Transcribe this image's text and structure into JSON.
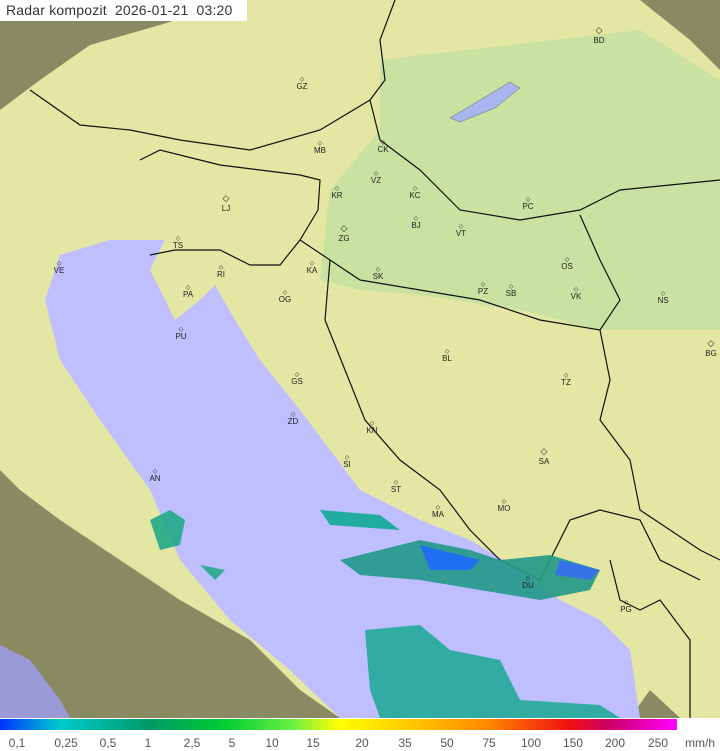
{
  "title": {
    "label": "Radar kompozit",
    "date": "2026-01-21",
    "time": "03:20"
  },
  "cities": [
    "BD",
    "GZ",
    "MB",
    "CK",
    "VZ",
    "KR",
    "KC",
    "PC",
    "LJ",
    "TS",
    "ZG",
    "BJ",
    "VT",
    "VE",
    "RI",
    "KA",
    "SK",
    "OS",
    "PA",
    "OG",
    "PZ",
    "SB",
    "VK",
    "NS",
    "PU",
    "BG",
    "BL",
    "GS",
    "TZ",
    "ZD",
    "KN",
    "SA",
    "AN",
    "SI",
    "ST",
    "MO",
    "MA",
    "DU",
    "PG"
  ],
  "legend": {
    "labels": [
      "0,1",
      "0,25",
      "0,5",
      "1",
      "2,5",
      "5",
      "10",
      "15",
      "20",
      "35",
      "50",
      "75",
      "100",
      "150",
      "200",
      "250"
    ],
    "unit": "mm/h"
  },
  "colors": {
    "sea": "#bfbfff",
    "land": "#e6e6a0",
    "outside": "#8a8a60"
  }
}
